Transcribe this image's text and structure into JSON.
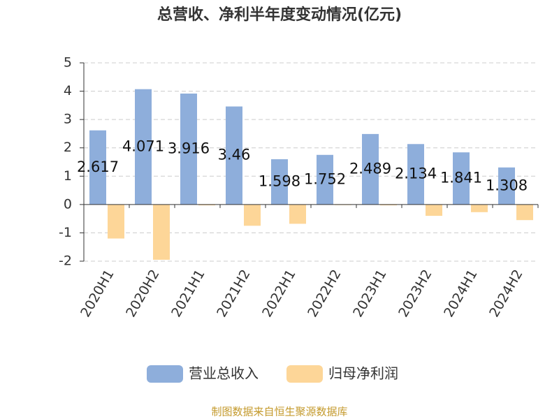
{
  "chart_data": {
    "type": "bar",
    "title": "总营收、净利半年度变动情况(亿元)",
    "categories": [
      "2020H1",
      "2020H2",
      "2021H1",
      "2021H2",
      "2022H1",
      "2022H2",
      "2023H1",
      "2023H2",
      "2024H1",
      "2024H2"
    ],
    "series": [
      {
        "name": "营业总收入",
        "color": "#8eaedb",
        "values": [
          2.617,
          4.071,
          3.916,
          3.46,
          1.598,
          1.752,
          2.489,
          2.134,
          1.841,
          1.308
        ]
      },
      {
        "name": "归母净利润",
        "color": "#fdd698",
        "values": [
          -1.2,
          -1.95,
          -0.03,
          -0.75,
          -0.68,
          -0.02,
          -0.03,
          -0.4,
          -0.27,
          -0.55
        ]
      }
    ],
    "ylim": [
      -2,
      5
    ],
    "yticks": [
      -2,
      -1,
      0,
      1,
      2,
      3,
      4,
      5
    ],
    "grid": true,
    "source": "制图数据来自恒生聚源数据库"
  }
}
